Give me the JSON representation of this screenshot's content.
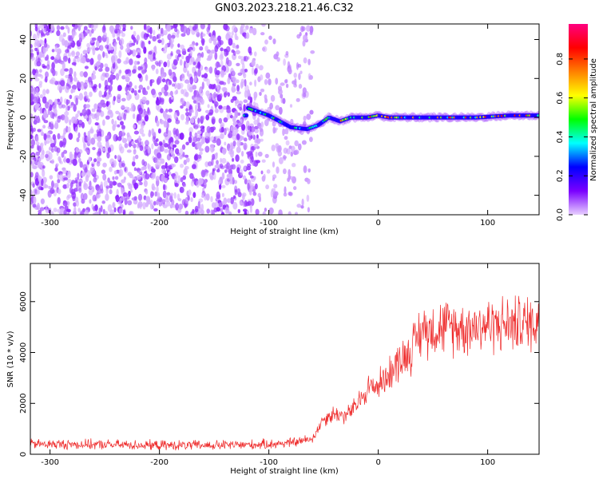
{
  "figure": {
    "title": "GN03.2023.218.21.46.C32"
  },
  "chart_data": [
    {
      "type": "heatmap",
      "xlabel": "Height of straight line (km)",
      "ylabel": "Frequency (Hz)",
      "xlim": [
        -318,
        147
      ],
      "ylim": [
        -50,
        48
      ],
      "xticks": [
        -300,
        -200,
        -100,
        0,
        100
      ],
      "yticks": [
        -40,
        -20,
        0,
        20,
        40
      ],
      "xtick_labels": [
        "-300",
        "-200",
        "-100",
        "0",
        "100"
      ],
      "ytick_labels": [
        "-40",
        "-20",
        "0",
        "20",
        "40"
      ],
      "colorbar": {
        "label": "Normalized spectral amplitude",
        "range": [
          0,
          0.98
        ],
        "ticks": [
          0,
          0.2,
          0.4,
          0.6,
          0.8
        ],
        "tick_labels": [
          "0.0",
          "0.2",
          "0.4",
          "0.6",
          "0.8"
        ],
        "colors": [
          "#e8d0ff",
          "#7a00ff",
          "#0000ff",
          "#00ffff",
          "#00ff00",
          "#ffff00",
          "#ff8000",
          "#ff0000",
          "#ff0080"
        ]
      },
      "regions": {
        "noise_x_range": [
          -318,
          -60
        ],
        "noise_dense_until": -110,
        "signal_x_range": [
          -122,
          147
        ],
        "signal_track": [
          {
            "x": -120,
            "f": 5
          },
          {
            "x": -110,
            "f": 3
          },
          {
            "x": -100,
            "f": 1
          },
          {
            "x": -90,
            "f": -2
          },
          {
            "x": -80,
            "f": -5
          },
          {
            "x": -65,
            "f": -6
          },
          {
            "x": -55,
            "f": -4
          },
          {
            "x": -45,
            "f": 0
          },
          {
            "x": -35,
            "f": -2
          },
          {
            "x": -25,
            "f": 0
          },
          {
            "x": -10,
            "f": 0
          },
          {
            "x": 0,
            "f": 1
          },
          {
            "x": 10,
            "f": 0
          },
          {
            "x": 30,
            "f": 0
          },
          {
            "x": 60,
            "f": 0
          },
          {
            "x": 90,
            "f": 0
          },
          {
            "x": 120,
            "f": 1
          },
          {
            "x": 147,
            "f": 1
          }
        ]
      }
    },
    {
      "type": "line",
      "xlabel": "Height of straight line (km)",
      "ylabel": "SNR (10 * v/v)",
      "xlim": [
        -318,
        147
      ],
      "ylim": [
        0,
        7500
      ],
      "xticks": [
        -300,
        -200,
        -100,
        0,
        100
      ],
      "yticks": [
        0,
        2000,
        4000,
        6000
      ],
      "xtick_labels": [
        "-300",
        "-200",
        "-100",
        "0",
        "100"
      ],
      "ytick_labels": [
        "0",
        "2000",
        "4000",
        "6000"
      ],
      "color": "#ee2a2a",
      "series": [
        {
          "x": [
            -318,
            -250,
            -200,
            -150,
            -110,
            -90,
            -75,
            -60,
            -50,
            -40,
            -30,
            -20,
            -10,
            0,
            10,
            20,
            30,
            40,
            60,
            80,
            100,
            120,
            147
          ],
          "y": [
            400,
            380,
            350,
            350,
            380,
            420,
            480,
            620,
            1400,
            1600,
            1500,
            1900,
            2600,
            2700,
            3200,
            3700,
            4100,
            4900,
            5000,
            5000,
            5100,
            5100,
            5200
          ]
        }
      ]
    }
  ]
}
